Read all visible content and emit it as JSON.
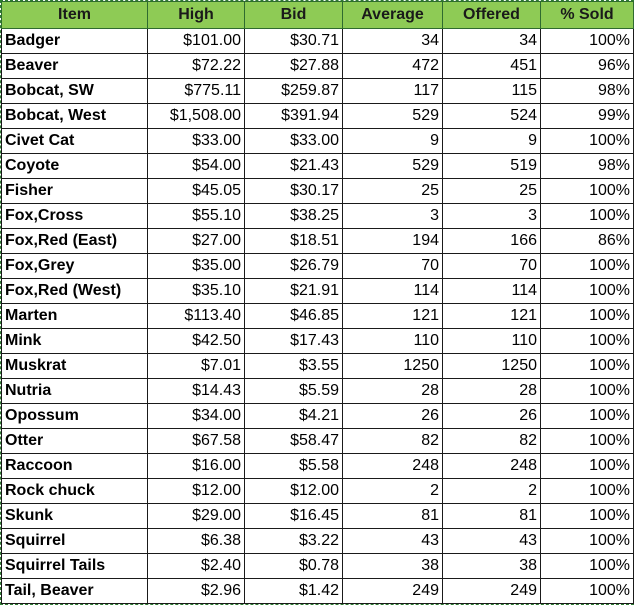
{
  "table": {
    "headers": [
      "Item",
      "High",
      "Bid",
      "Average",
      "Offered",
      "% Sold"
    ],
    "rows": [
      [
        "Badger",
        "$101.00",
        "$30.71",
        "34",
        "34",
        "100%"
      ],
      [
        "Beaver",
        "$72.22",
        "$27.88",
        "472",
        "451",
        "96%"
      ],
      [
        "Bobcat, SW",
        "$775.11",
        "$259.87",
        "117",
        "115",
        "98%"
      ],
      [
        "Bobcat, West",
        "$1,508.00",
        "$391.94",
        "529",
        "524",
        "99%"
      ],
      [
        "Civet Cat",
        "$33.00",
        "$33.00",
        "9",
        "9",
        "100%"
      ],
      [
        "Coyote",
        "$54.00",
        "$21.43",
        "529",
        "519",
        "98%"
      ],
      [
        "Fisher",
        "$45.05",
        "$30.17",
        "25",
        "25",
        "100%"
      ],
      [
        "Fox,Cross",
        "$55.10",
        "$38.25",
        "3",
        "3",
        "100%"
      ],
      [
        "Fox,Red (East)",
        "$27.00",
        "$18.51",
        "194",
        "166",
        "86%"
      ],
      [
        "Fox,Grey",
        "$35.00",
        "$26.79",
        "70",
        "70",
        "100%"
      ],
      [
        "Fox,Red (West)",
        "$35.10",
        "$21.91",
        "114",
        "114",
        "100%"
      ],
      [
        "Marten",
        "$113.40",
        "$46.85",
        "121",
        "121",
        "100%"
      ],
      [
        "Mink",
        "$42.50",
        "$17.43",
        "110",
        "110",
        "100%"
      ],
      [
        "Muskrat",
        "$7.01",
        "$3.55",
        "1250",
        "1250",
        "100%"
      ],
      [
        "Nutria",
        "$14.43",
        "$5.59",
        "28",
        "28",
        "100%"
      ],
      [
        "Opossum",
        "$34.00",
        "$4.21",
        "26",
        "26",
        "100%"
      ],
      [
        "Otter",
        "$67.58",
        "$58.47",
        "82",
        "82",
        "100%"
      ],
      [
        "Raccoon",
        "$16.00",
        "$5.58",
        "248",
        "248",
        "100%"
      ],
      [
        "Rock chuck",
        "$12.00",
        "$12.00",
        "2",
        "2",
        "100%"
      ],
      [
        "Skunk",
        "$29.00",
        "$16.45",
        "81",
        "81",
        "100%"
      ],
      [
        "Squirrel",
        "$6.38",
        "$3.22",
        "43",
        "43",
        "100%"
      ],
      [
        "Squirrel Tails",
        "$2.40",
        "$0.78",
        "38",
        "38",
        "100%"
      ],
      [
        "Tail, Beaver",
        "$2.96",
        "$1.42",
        "249",
        "249",
        "100%"
      ]
    ]
  },
  "colors": {
    "header_fill": "#8ecb55",
    "border": "#1a1a1a",
    "selection_border": "#2e7d32"
  }
}
